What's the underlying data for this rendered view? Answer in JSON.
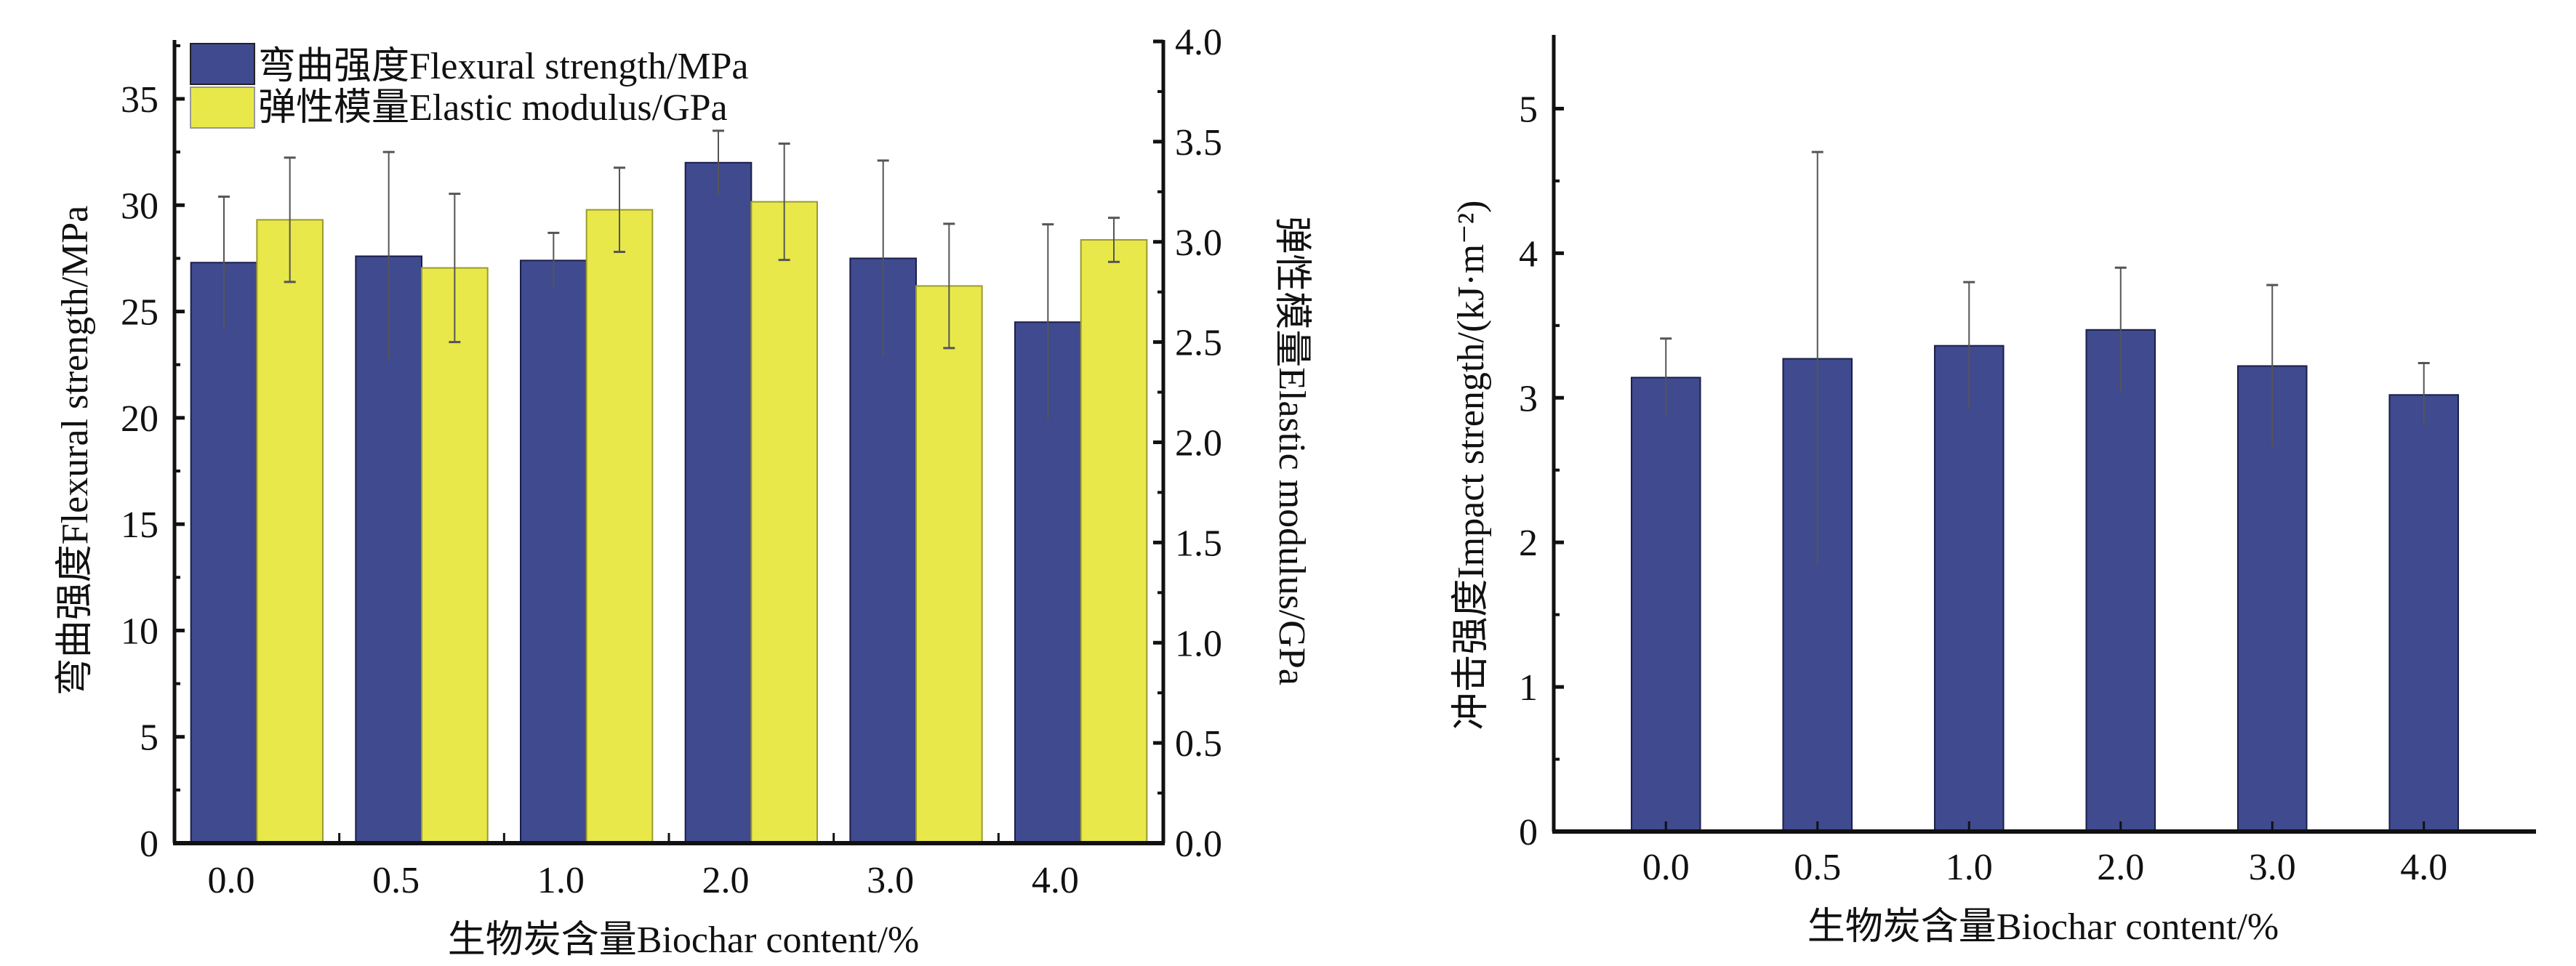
{
  "colors": {
    "flexural": "#3f4a8f",
    "elastic": "#e8e84a",
    "impact": "#3f4a8f",
    "axis": "#111111",
    "errorbar": "#555555"
  },
  "chart_data": [
    {
      "type": "bar",
      "id": "left",
      "title": "",
      "categories": [
        "0.0",
        "0.5",
        "1.0",
        "2.0",
        "3.0",
        "4.0"
      ],
      "xlabel": "生物炭含量Biochar content/%",
      "ylabel": "弯曲强度Flexural strength/MPa",
      "y2label": "弹性模量Elastic modulus/GPa",
      "ylim": [
        0,
        37.7
      ],
      "y2lim": [
        0,
        4.0
      ],
      "yticks": [
        0,
        5,
        10,
        15,
        20,
        25,
        30,
        35
      ],
      "ytick_labels": [
        "0",
        "5",
        "10",
        "15",
        "20",
        "25",
        "30",
        "35"
      ],
      "y2ticks": [
        0,
        0.5,
        1.0,
        1.5,
        2.0,
        2.5,
        3.0,
        3.5,
        4.0
      ],
      "y2tick_labels": [
        "0.0",
        "0.5",
        "1.0",
        "1.5",
        "2.0",
        "2.5",
        "3.0",
        "3.5",
        "4.0"
      ],
      "legend_position": "top-left",
      "grid": false,
      "series": [
        {
          "name": "弯曲强度Flexural strength/MPa",
          "axis": "left",
          "values": [
            27.3,
            27.6,
            27.4,
            32.0,
            27.5,
            24.5
          ],
          "errors": [
            3.1,
            4.9,
            1.3,
            1.5,
            4.6,
            4.6
          ]
        },
        {
          "name": "弹性模量Elastic modulus/GPa",
          "axis": "right",
          "values": [
            3.11,
            2.87,
            3.16,
            3.2,
            2.78,
            3.01
          ],
          "errors": [
            0.31,
            0.37,
            0.21,
            0.29,
            0.31,
            0.11
          ]
        }
      ]
    },
    {
      "type": "bar",
      "id": "right",
      "title": "",
      "categories": [
        "0.0",
        "0.5",
        "1.0",
        "2.0",
        "3.0",
        "4.0"
      ],
      "xlabel": "生物炭含量Biochar content/%",
      "ylabel": "冲击强度Impact strength/(kJ·m⁻²)",
      "ylim": [
        0,
        5.5
      ],
      "yticks": [
        0,
        1,
        2,
        3,
        4,
        5
      ],
      "ytick_labels": [
        "0",
        "1",
        "2",
        "3",
        "4",
        "5"
      ],
      "legend_position": "none",
      "grid": false,
      "series": [
        {
          "name": "冲击强度Impact strength/(kJ·m⁻²)",
          "values": [
            3.14,
            3.27,
            3.36,
            3.47,
            3.22,
            3.02
          ],
          "errors": [
            0.27,
            1.43,
            0.44,
            0.43,
            0.56,
            0.22
          ]
        }
      ]
    }
  ]
}
